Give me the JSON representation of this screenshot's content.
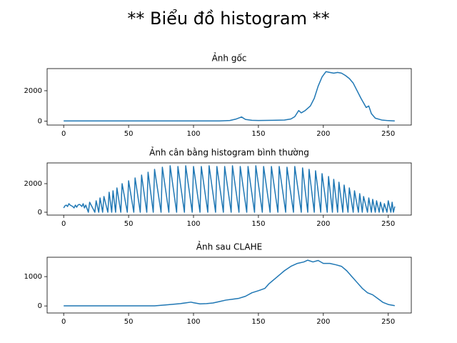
{
  "title": "** Biểu đồ histogram **",
  "chart_data": [
    {
      "type": "line",
      "title": "Ảnh gốc",
      "x": [
        0,
        60,
        120,
        128,
        133,
        137,
        140,
        145,
        150,
        160,
        170,
        175,
        178,
        181,
        183,
        186,
        190,
        193,
        196,
        199,
        202,
        205,
        208,
        211,
        214,
        217,
        220,
        223,
        226,
        229,
        231,
        233,
        235,
        237,
        240,
        245,
        250,
        255
      ],
      "series": [
        {
          "color": "#1f77b4",
          "values": [
            20,
            20,
            20,
            50,
            150,
            280,
            120,
            60,
            50,
            60,
            80,
            150,
            300,
            700,
            550,
            700,
            1000,
            1500,
            2300,
            2900,
            3250,
            3200,
            3150,
            3200,
            3150,
            3000,
            2800,
            2500,
            2000,
            1500,
            1200,
            900,
            1000,
            500,
            200,
            80,
            40,
            20
          ]
        }
      ],
      "xlim": [
        -12.75,
        267.75
      ],
      "xticks": [
        0,
        50,
        100,
        150,
        200,
        250
      ],
      "ylim": [
        -250,
        3450
      ],
      "yticks": [
        0,
        2000
      ],
      "grid": false
    },
    {
      "type": "line",
      "title": "Ảnh cân bằng histogram bình thường",
      "x": [
        0,
        1,
        2,
        3,
        4,
        5,
        6,
        7,
        8,
        9,
        10,
        11,
        12,
        13,
        14,
        15,
        16,
        17,
        19,
        20,
        24,
        25,
        27,
        28,
        30,
        31,
        34,
        35,
        37,
        38,
        40,
        41,
        44,
        45,
        49,
        50,
        54,
        55,
        59,
        60,
        64,
        65,
        69,
        70,
        75,
        76,
        81,
        82,
        87,
        88,
        93,
        94,
        99,
        100,
        105,
        106,
        111,
        112,
        117,
        118,
        123,
        124,
        129,
        130,
        135,
        136,
        141,
        142,
        147,
        148,
        153,
        154,
        159,
        160,
        165,
        166,
        171,
        172,
        177,
        178,
        183,
        184,
        188,
        189,
        193,
        194,
        198,
        199,
        203,
        204,
        207,
        208,
        211,
        212,
        215,
        216,
        219,
        220,
        223,
        224,
        227,
        228,
        230,
        231,
        234,
        235,
        237,
        238,
        240,
        241,
        243,
        244,
        246,
        247,
        249,
        250,
        252,
        253,
        254,
        255
      ],
      "series": [
        {
          "color": "#1f77b4",
          "values": [
            300,
            450,
            500,
            400,
            600,
            500,
            450,
            400,
            300,
            500,
            350,
            500,
            550,
            500,
            400,
            600,
            300,
            500,
            0,
            700,
            0,
            800,
            0,
            1000,
            0,
            1100,
            0,
            1400,
            0,
            1500,
            0,
            1700,
            0,
            2000,
            0,
            2200,
            0,
            2400,
            0,
            2600,
            0,
            2800,
            0,
            3000,
            0,
            3150,
            0,
            3250,
            0,
            3200,
            0,
            3250,
            0,
            3200,
            0,
            3200,
            0,
            3250,
            0,
            3200,
            0,
            3200,
            0,
            3250,
            0,
            3200,
            0,
            3200,
            0,
            3250,
            0,
            3200,
            0,
            3200,
            0,
            3200,
            0,
            3150,
            0,
            3200,
            0,
            3100,
            0,
            3000,
            0,
            2900,
            0,
            2700,
            0,
            2500,
            0,
            2300,
            0,
            2100,
            0,
            1900,
            0,
            1700,
            0,
            1500,
            0,
            1300,
            0,
            1100,
            0,
            1000,
            0,
            900,
            0,
            800,
            0,
            700,
            0,
            600,
            0,
            800,
            0,
            700,
            0,
            400
          ]
        }
      ],
      "xlim": [
        -12.75,
        267.75
      ],
      "xticks": [
        0,
        50,
        100,
        150,
        200,
        250
      ],
      "ylim": [
        -200,
        3450
      ],
      "yticks": [
        0,
        2000
      ],
      "grid": false
    },
    {
      "type": "line",
      "title": "Ảnh sau CLAHE",
      "x": [
        0,
        70,
        80,
        90,
        98,
        100,
        105,
        110,
        115,
        120,
        125,
        130,
        135,
        140,
        145,
        150,
        155,
        158,
        162,
        166,
        170,
        175,
        180,
        185,
        188,
        192,
        196,
        200,
        205,
        210,
        214,
        218,
        222,
        226,
        230,
        234,
        238,
        242,
        246,
        250,
        255
      ],
      "series": [
        {
          "color": "#1f77b4",
          "values": [
            5,
            5,
            40,
            80,
            130,
            110,
            70,
            80,
            100,
            150,
            200,
            230,
            260,
            330,
            450,
            520,
            600,
            750,
            900,
            1050,
            1200,
            1350,
            1450,
            1500,
            1560,
            1500,
            1550,
            1450,
            1450,
            1400,
            1350,
            1200,
            1000,
            800,
            600,
            450,
            380,
            250,
            120,
            50,
            10
          ]
        }
      ],
      "xlim": [
        -12.75,
        267.75
      ],
      "xticks": [
        0,
        50,
        100,
        150,
        200,
        250
      ],
      "ylim": [
        -240,
        1660
      ],
      "yticks": [
        0,
        1000
      ],
      "grid": false
    }
  ]
}
